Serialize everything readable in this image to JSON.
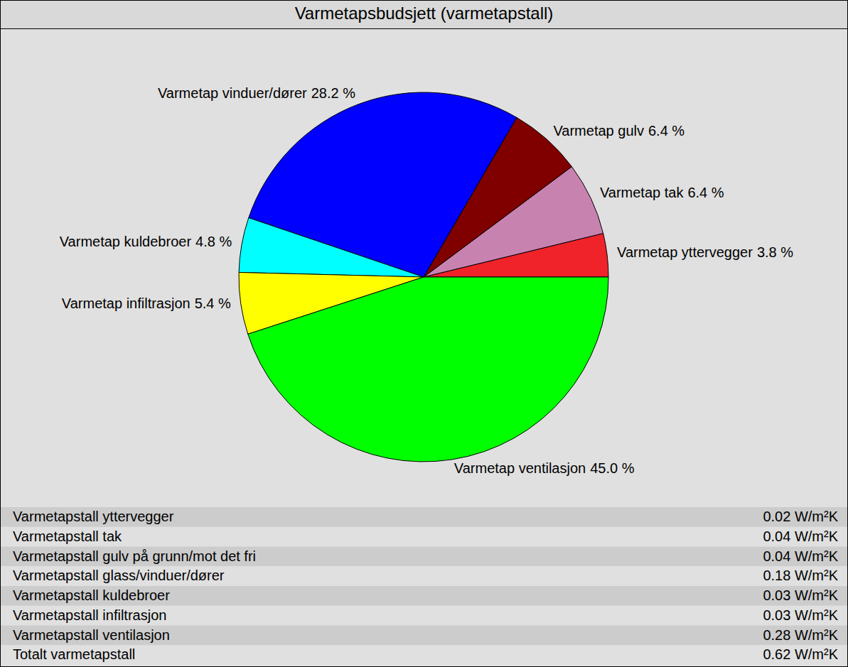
{
  "chart_data": {
    "type": "pie",
    "title": "Varmetapsbudsjett (varmetapstall)",
    "categories": [
      "Varmetap yttervegger",
      "Varmetap tak",
      "Varmetap gulv",
      "Varmetap vinduer/dører",
      "Varmetap kuldebroer",
      "Varmetap infiltrasjon",
      "Varmetap ventilasjon"
    ],
    "values": [
      3.8,
      6.4,
      6.4,
      28.2,
      4.8,
      5.4,
      45.0
    ],
    "value_labels": [
      "3.8 %",
      "6.4 %",
      "6.4 %",
      "28.2 %",
      "4.8 %",
      "5.4 %",
      "45.0 %"
    ],
    "colors": [
      "#f0232a",
      "#c882b0",
      "#800000",
      "#0000ff",
      "#00ffff",
      "#ffff00",
      "#00ff00"
    ],
    "data_labels": true
  },
  "table": {
    "rows": [
      [
        "Varmetapstall yttervegger",
        "0.02 W/m²K"
      ],
      [
        "Varmetapstall tak",
        "0.04 W/m²K"
      ],
      [
        "Varmetapstall gulv på grunn/mot det fri",
        "0.04 W/m²K"
      ],
      [
        "Varmetapstall glass/vinduer/dører",
        "0.18 W/m²K"
      ],
      [
        "Varmetapstall kuldebroer",
        "0.03 W/m²K"
      ],
      [
        "Varmetapstall infiltrasjon",
        "0.03 W/m²K"
      ],
      [
        "Varmetapstall ventilasjon",
        "0.28 W/m²K"
      ],
      [
        "Totalt varmetapstall",
        "0.62 W/m²K"
      ]
    ]
  }
}
